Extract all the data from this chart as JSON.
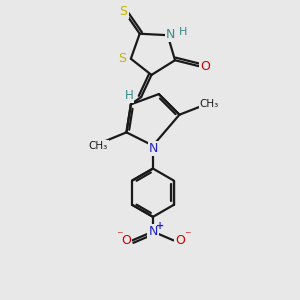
{
  "background_color": "#e8e8e8",
  "bond_color": "#1a1a1a",
  "S_color": "#c8b400",
  "N_color": "#2222cc",
  "N_nh_color": "#3a8888",
  "O_color": "#cc0000",
  "H_color": "#3a8888",
  "bond_width": 1.6,
  "figsize": [
    3.0,
    3.0
  ],
  "dpi": 100,
  "xlim": [
    0,
    10
  ],
  "ylim": [
    0,
    10
  ]
}
